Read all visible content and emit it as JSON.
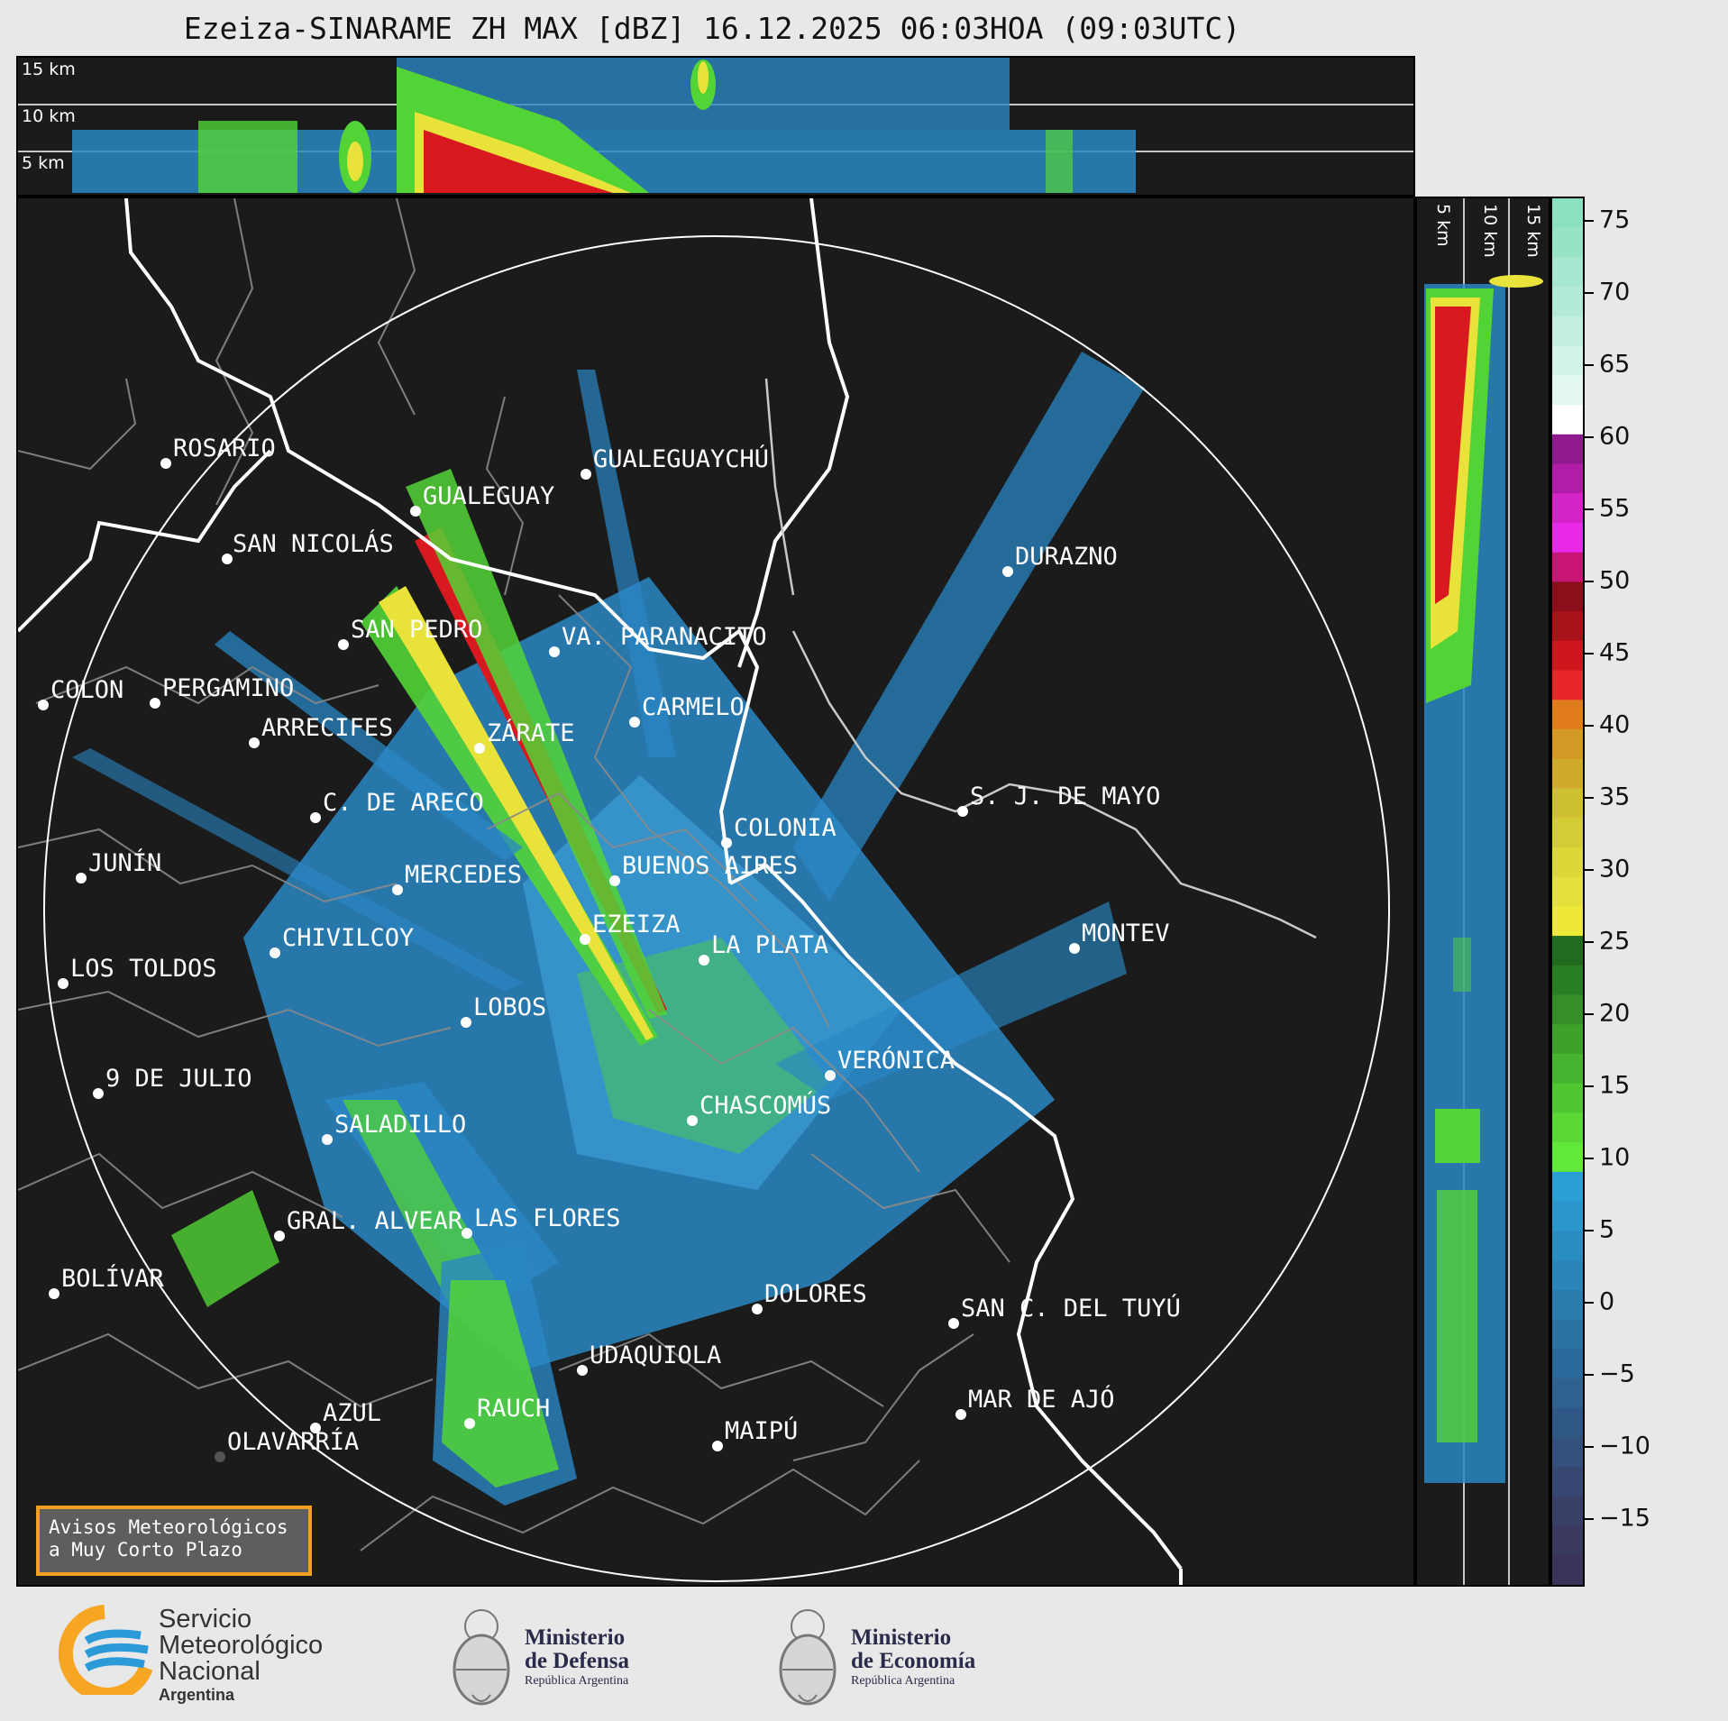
{
  "title": "Ezeiza-SINARAME ZH MAX [dBZ] 16.12.2025 06:03HOA (09:03UTC)",
  "height_labels": [
    "15 km",
    "10 km",
    "5 km"
  ],
  "side_labels": [
    "5 km",
    "10 km",
    "15 km"
  ],
  "colorbar": {
    "ticks": [
      "75",
      "70",
      "65",
      "60",
      "55",
      "50",
      "45",
      "40",
      "35",
      "30",
      "25",
      "20",
      "15",
      "10",
      "5",
      "0",
      "−5",
      "−10",
      "−15"
    ]
  },
  "cities": [
    {
      "name": "ROSARIO"
    },
    {
      "name": "GUALEGUAYCHÚ"
    },
    {
      "name": "GUALEGUAY"
    },
    {
      "name": "SAN NICOLÁS"
    },
    {
      "name": "DURAZNO"
    },
    {
      "name": "SAN PEDRO"
    },
    {
      "name": "VA. PARANACITO"
    },
    {
      "name": "COLON"
    },
    {
      "name": "PERGAMINO"
    },
    {
      "name": "CARMELO"
    },
    {
      "name": "ARRECIFES"
    },
    {
      "name": "ZÁRATE"
    },
    {
      "name": "S. J. DE MAYO"
    },
    {
      "name": "C. DE ARECO"
    },
    {
      "name": "COLONIA"
    },
    {
      "name": "JUNÍN"
    },
    {
      "name": "BUENOS AIRES"
    },
    {
      "name": "MERCEDES"
    },
    {
      "name": "MONTEV"
    },
    {
      "name": "EZEIZA"
    },
    {
      "name": "CHIVILCOY"
    },
    {
      "name": "LA PLATA"
    },
    {
      "name": "LOS TOLDOS"
    },
    {
      "name": "LOBOS"
    },
    {
      "name": "VERÓNICA"
    },
    {
      "name": "9 DE JULIO"
    },
    {
      "name": "CHASCOMÚS"
    },
    {
      "name": "SALADILLO"
    },
    {
      "name": "GRAL. ALVEAR"
    },
    {
      "name": "LAS FLORES"
    },
    {
      "name": "BOLÍVAR"
    },
    {
      "name": "DOLORES"
    },
    {
      "name": "SAN C. DEL TUYÚ"
    },
    {
      "name": "UDAQUIOLA"
    },
    {
      "name": "MAR DE AJÓ"
    },
    {
      "name": "RAUCH"
    },
    {
      "name": "AZUL"
    },
    {
      "name": "OLAVARRÍA"
    },
    {
      "name": "MAIPÚ"
    }
  ],
  "avisos": {
    "line1": "Avisos Meteorológicos",
    "line2": "a Muy Corto Plazo"
  },
  "logos": {
    "smn": {
      "line1": "Servicio",
      "line2": "Meteorológico",
      "line3": "Nacional",
      "line4": "Argentina"
    },
    "defensa": {
      "line1": "Ministerio",
      "line2": "de Defensa",
      "line3": "República Argentina"
    },
    "economia": {
      "line1": "Ministerio",
      "line2": "de Economía",
      "line3": "República Argentina"
    }
  },
  "colors": {
    "panel_bg": "#1b1b1b",
    "coast": "#ffffff",
    "borders": "#8a8a8a",
    "accent_orange": "#f0a020",
    "smn_blue": "#2d9ad8",
    "smn_orange": "#f6a623"
  }
}
